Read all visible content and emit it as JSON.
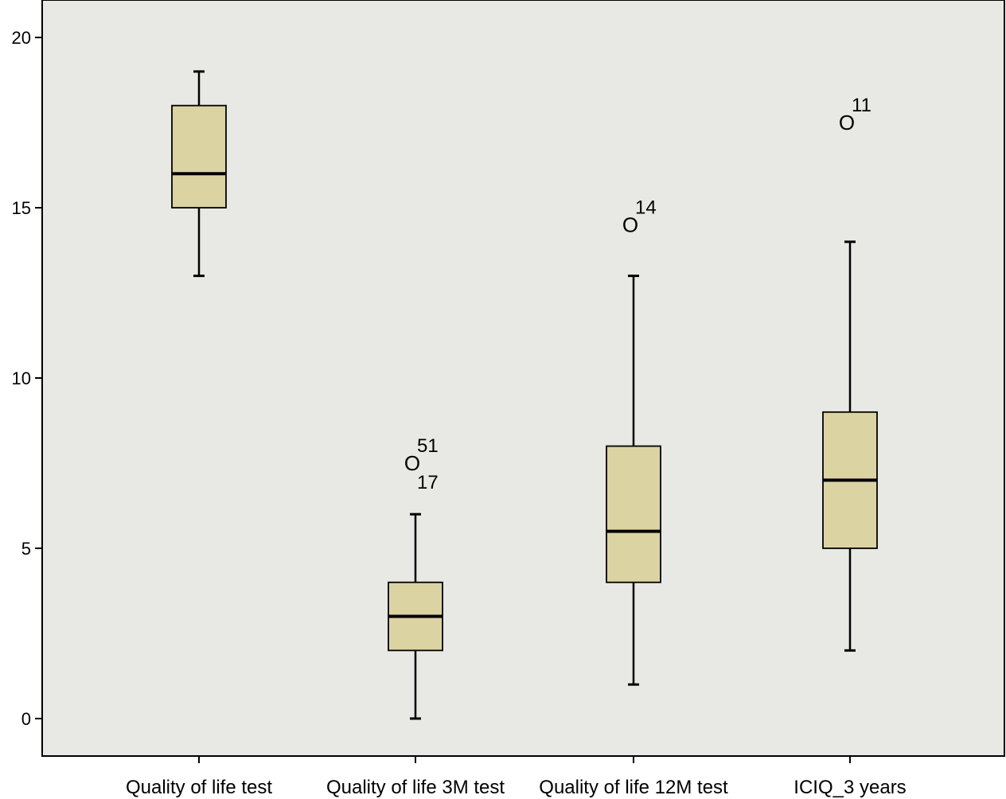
{
  "chart_data": {
    "type": "boxplot",
    "title": "",
    "xlabel": "",
    "ylabel": "",
    "ylim": [
      -1.1,
      21.1
    ],
    "yticks": [
      0,
      5,
      10,
      15,
      20
    ],
    "grid": false,
    "legend": "none",
    "colors": {
      "plot_bg": "#e8e8e4",
      "box_fill": "#dcd3a3",
      "stroke": "#000000"
    },
    "categories": [
      "Quality of life test",
      "Quality of life 3M test",
      "Quality of life 12M test",
      "ICIQ_3 years"
    ],
    "boxes": [
      {
        "whisker_low": 13,
        "q1": 15,
        "median": 16,
        "q3": 18,
        "whisker_high": 19,
        "outliers": []
      },
      {
        "whisker_low": 0,
        "q1": 2,
        "median": 3,
        "q3": 4,
        "whisker_high": 6,
        "outliers": [
          {
            "value": 7.5,
            "labels": [
              "51",
              "17"
            ]
          }
        ]
      },
      {
        "whisker_low": 1,
        "q1": 4,
        "median": 5.5,
        "q3": 8,
        "whisker_high": 13,
        "outliers": [
          {
            "value": 14.5,
            "labels": [
              "14"
            ]
          }
        ]
      },
      {
        "whisker_low": 2,
        "q1": 5,
        "median": 7,
        "q3": 9,
        "whisker_high": 14,
        "outliers": [
          {
            "value": 17.5,
            "labels": [
              "11"
            ]
          }
        ]
      }
    ],
    "outlier_marker": "O"
  }
}
